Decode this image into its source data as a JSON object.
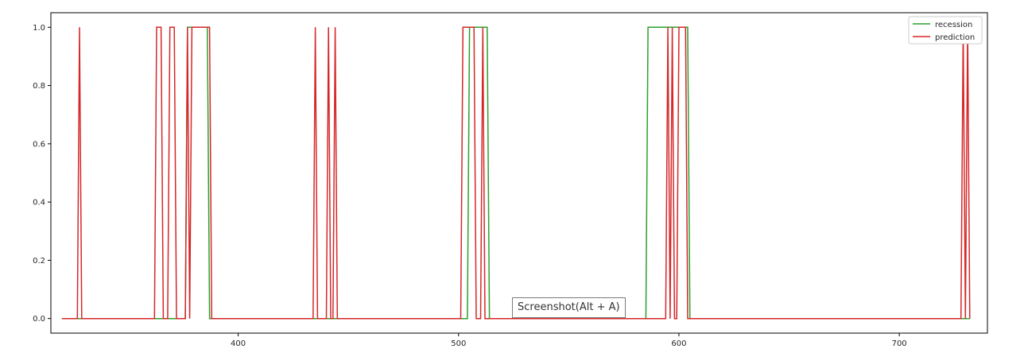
{
  "chart_data": {
    "type": "line",
    "title": "",
    "xlabel": "",
    "ylabel": "",
    "xlim": [
      315,
      740
    ],
    "ylim": [
      -0.05,
      1.05
    ],
    "xticks": [
      400,
      500,
      600,
      700
    ],
    "yticks": [
      0.0,
      0.2,
      0.4,
      0.6,
      0.8,
      1.0
    ],
    "ytick_labels": [
      "0.0",
      "0.2",
      "0.4",
      "0.6",
      "0.8",
      "1.0"
    ],
    "xtick_labels": [
      "400",
      "500",
      "600",
      "700"
    ],
    "grid": false,
    "legend_position": "top-right",
    "series": [
      {
        "name": "recession",
        "color": "#2ca02c",
        "points": [
          [
            320,
            0
          ],
          [
            376,
            0
          ],
          [
            377,
            1
          ],
          [
            386,
            1
          ],
          [
            387,
            0
          ],
          [
            504,
            0
          ],
          [
            505,
            1
          ],
          [
            513,
            1
          ],
          [
            514,
            0
          ],
          [
            585,
            0
          ],
          [
            586,
            1
          ],
          [
            604,
            1
          ],
          [
            605,
            0
          ],
          [
            732,
            0
          ]
        ]
      },
      {
        "name": "prediction",
        "color": "#d62728",
        "points": [
          [
            320,
            0
          ],
          [
            327,
            0
          ],
          [
            328,
            1
          ],
          [
            329,
            0
          ],
          [
            362,
            0
          ],
          [
            363,
            1
          ],
          [
            365,
            1
          ],
          [
            366,
            0
          ],
          [
            368,
            0
          ],
          [
            369,
            1
          ],
          [
            371,
            1
          ],
          [
            372,
            0
          ],
          [
            376,
            0
          ],
          [
            377,
            1
          ],
          [
            378,
            0
          ],
          [
            379,
            1
          ],
          [
            387,
            1
          ],
          [
            388,
            0
          ],
          [
            434,
            0
          ],
          [
            435,
            1
          ],
          [
            436,
            0
          ],
          [
            440,
            0
          ],
          [
            441,
            1
          ],
          [
            442,
            0
          ],
          [
            443,
            0
          ],
          [
            444,
            1
          ],
          [
            445,
            0
          ],
          [
            501,
            0
          ],
          [
            502,
            1
          ],
          [
            507,
            1
          ],
          [
            508,
            0
          ],
          [
            510,
            0
          ],
          [
            511,
            1
          ],
          [
            512,
            0
          ],
          [
            594,
            0
          ],
          [
            595,
            1
          ],
          [
            596,
            0
          ],
          [
            597,
            1
          ],
          [
            598,
            0
          ],
          [
            599,
            0
          ],
          [
            600,
            1
          ],
          [
            603,
            1
          ],
          [
            604,
            0
          ],
          [
            728,
            0
          ],
          [
            729,
            1
          ],
          [
            730,
            0
          ],
          [
            731,
            1
          ],
          [
            732,
            0
          ]
        ]
      }
    ]
  },
  "overlay": {
    "tooltip_text": "Screenshot(Alt + A)"
  }
}
